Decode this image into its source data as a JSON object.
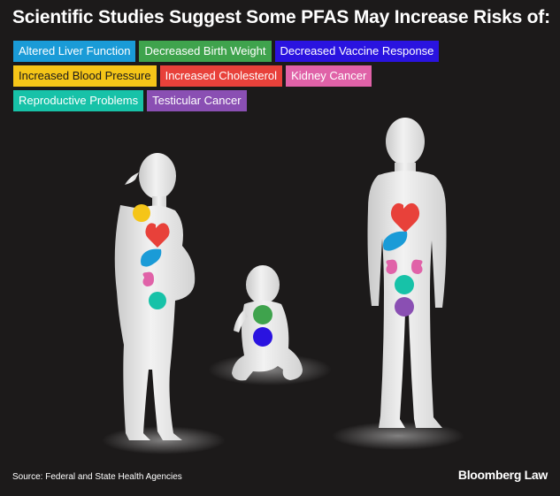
{
  "title": "Scientific Studies Suggest Some PFAS May Increase Risks of:",
  "legend": [
    {
      "label": "Altered Liver Function",
      "color": "#1a9bd7"
    },
    {
      "label": "Decreased Birth Weight",
      "color": "#3fa34d"
    },
    {
      "label": "Decreased Vaccine Response",
      "color": "#2a13e0"
    },
    {
      "label": "Increased Blood Pressure",
      "color": "#f5c518"
    },
    {
      "label": "Increased Cholesterol",
      "color": "#e8413a"
    },
    {
      "label": "Kidney Cancer",
      "color": "#e062a8"
    },
    {
      "label": "Reproductive Problems",
      "color": "#17c2a8"
    },
    {
      "label": "Testicular Cancer",
      "color": "#8a4fb3"
    }
  ],
  "footer": {
    "source": "Source: Federal and State Health Agencies",
    "brand": "Bloomberg Law"
  }
}
